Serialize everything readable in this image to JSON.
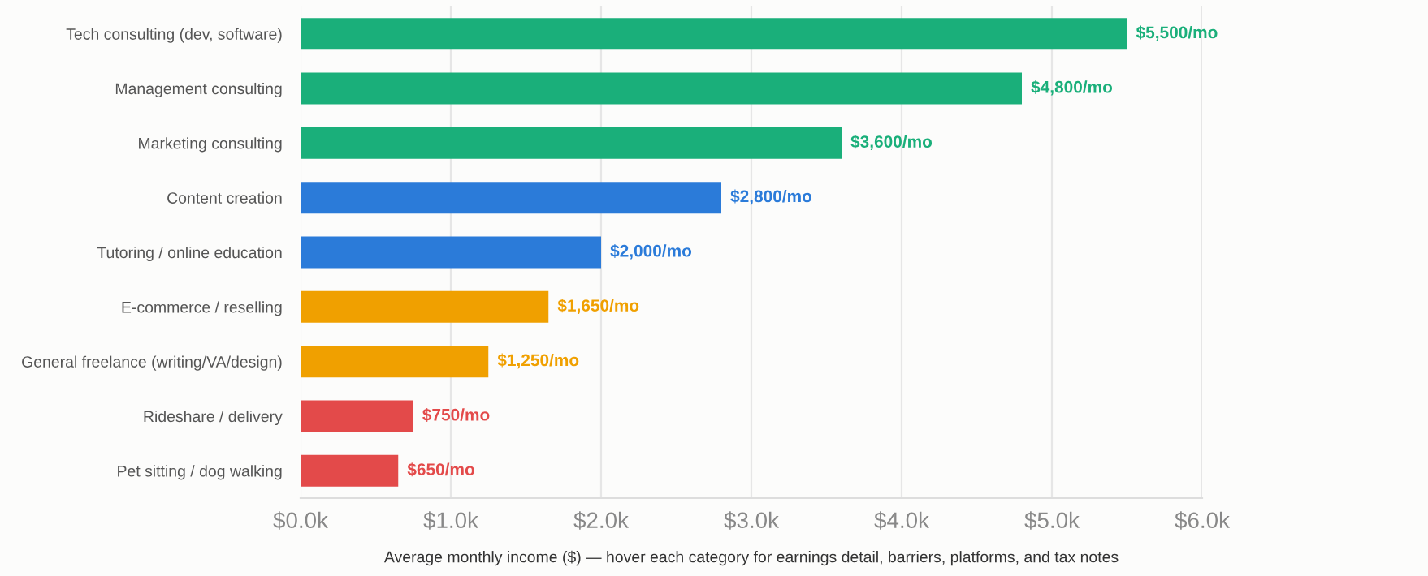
{
  "chart_data": {
    "type": "bar",
    "orientation": "horizontal",
    "xlabel": "Average monthly income ($) — hover each category for earnings detail, barriers, platforms, and tax notes",
    "categories": [
      "Tech consulting (dev, software)",
      "Management consulting",
      "Marketing consulting",
      "Content creation",
      "Tutoring / online education",
      "E-commerce / reselling",
      "General freelance (writing/VA/design)",
      "Rideshare / delivery",
      "Pet sitting / dog walking"
    ],
    "values": [
      5500,
      4800,
      3600,
      2800,
      2000,
      1650,
      1250,
      750,
      650
    ],
    "colors": [
      "#1aaf7a",
      "#1aaf7a",
      "#1aaf7a",
      "#2b7bd9",
      "#2b7bd9",
      "#f0a000",
      "#f0a000",
      "#e34a4a",
      "#e34a4a"
    ],
    "value_labels": [
      "$5,500/mo",
      "$4,800/mo",
      "$3,600/mo",
      "$2,800/mo",
      "$2,000/mo",
      "$1,650/mo",
      "$1,250/mo",
      "$750/mo",
      "$650/mo"
    ],
    "xlim": [
      0,
      6000
    ],
    "xticks": [
      {
        "value": 0,
        "label": "$0.0k"
      },
      {
        "value": 1000,
        "label": "$1.0k"
      },
      {
        "value": 2000,
        "label": "$2.0k"
      },
      {
        "value": 3000,
        "label": "$3.0k"
      },
      {
        "value": 4000,
        "label": "$4.0k"
      },
      {
        "value": 5000,
        "label": "$5.0k"
      },
      {
        "value": 6000,
        "label": "$6.0k"
      }
    ],
    "grid": "x",
    "legend": false
  }
}
